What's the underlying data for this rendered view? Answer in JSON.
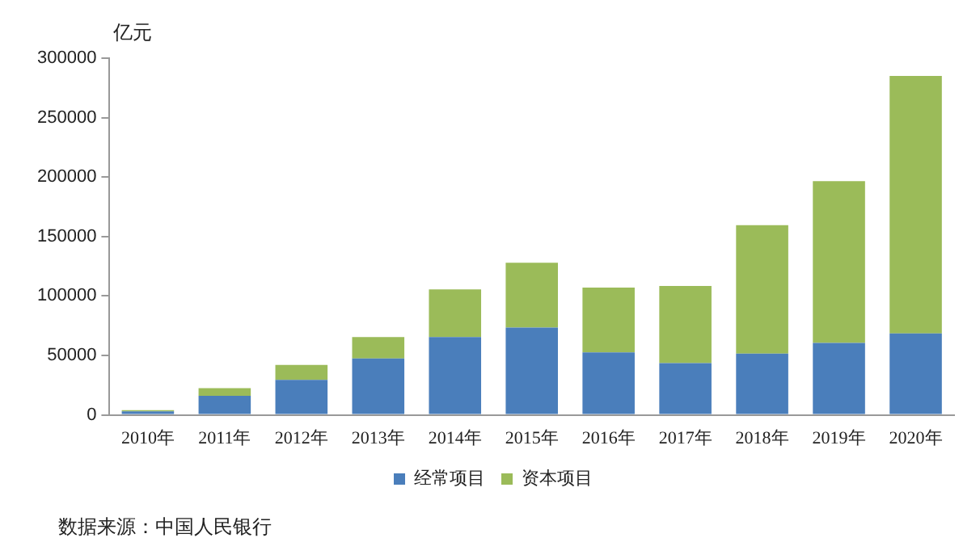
{
  "chart_data": {
    "type": "bar",
    "stacked": true,
    "ylabel": "亿元",
    "categories": [
      "2010年",
      "2011年",
      "2012年",
      "2013年",
      "2014年",
      "2015年",
      "2016年",
      "2017年",
      "2018年",
      "2019年",
      "2020年"
    ],
    "series": [
      {
        "name": "经常项目",
        "color": "#4a7ebb",
        "values": [
          3000,
          16000,
          29500,
          47500,
          65500,
          73500,
          52500,
          43500,
          51500,
          60500,
          68500
        ]
      },
      {
        "name": "资本项目",
        "color": "#9bbb59",
        "values": [
          1000,
          6500,
          12500,
          18000,
          40000,
          54500,
          54500,
          65000,
          108000,
          136000,
          216500
        ]
      }
    ],
    "ylim": [
      0,
      300000
    ],
    "yticks": [
      0,
      50000,
      100000,
      150000,
      200000,
      250000,
      300000
    ],
    "grid": false,
    "legend": "bottom",
    "annotations": [
      "数据来源：中国人民银行"
    ]
  }
}
